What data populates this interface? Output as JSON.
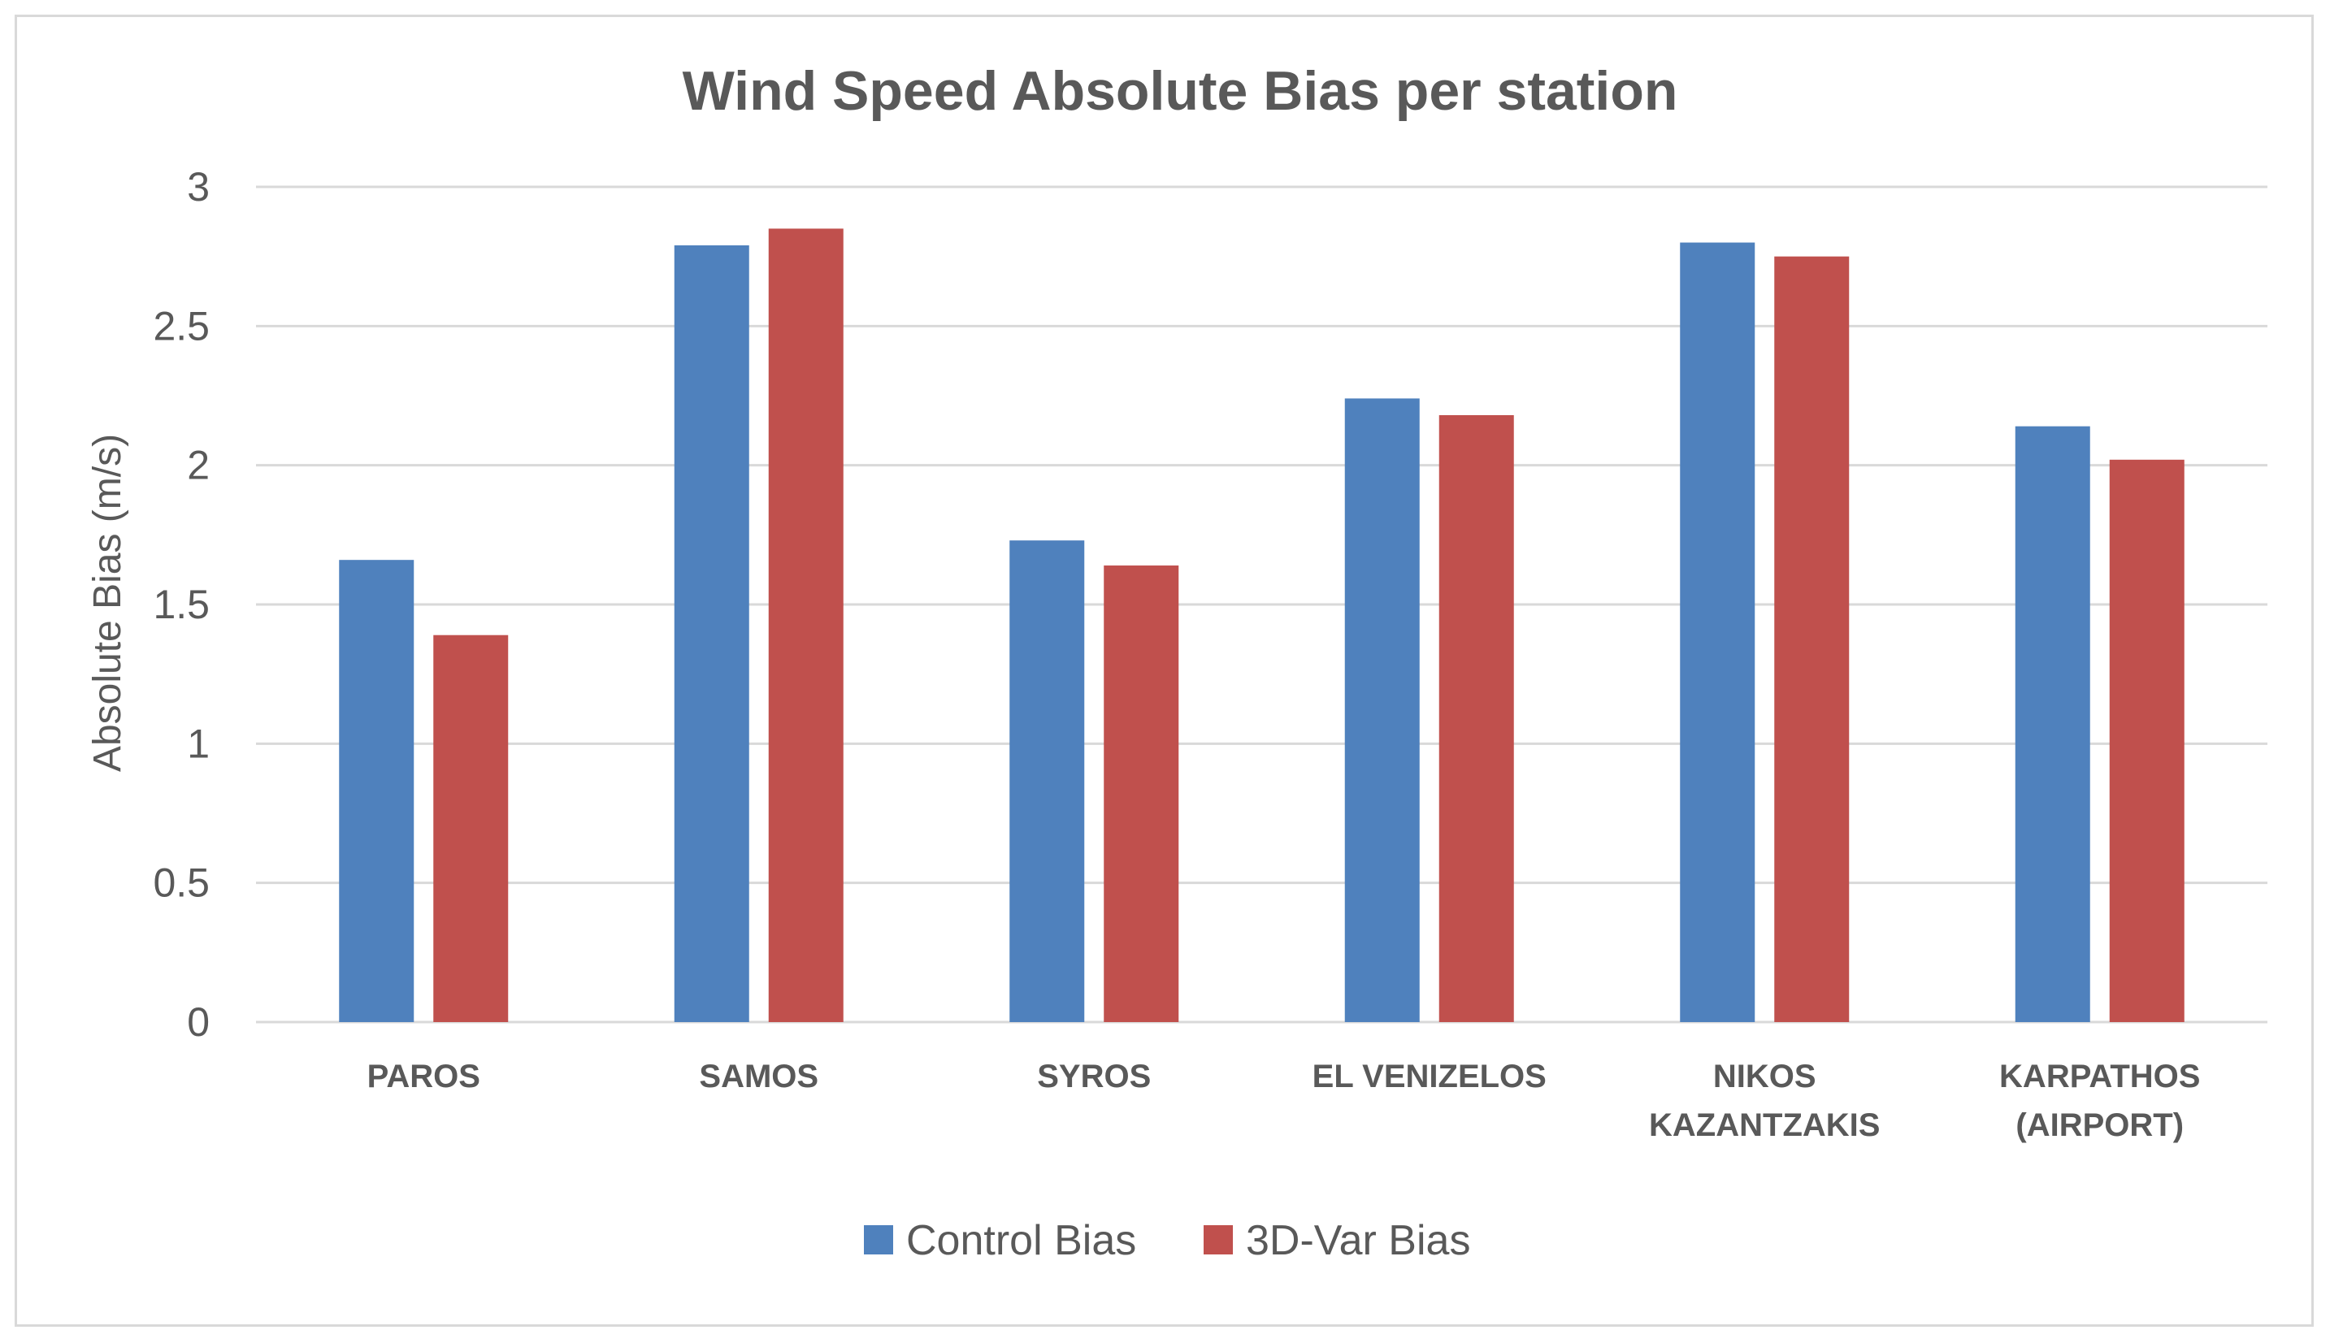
{
  "chart_data": {
    "type": "bar",
    "title": "Wind Speed Absolute Bias per station",
    "xlabel": "",
    "ylabel": "Absolute Bias (m/s)",
    "ylim": [
      0,
      3
    ],
    "yticks": [
      "0",
      "0.5",
      "1",
      "1.5",
      "2",
      "2.5",
      "3"
    ],
    "grid": true,
    "legend_position": "bottom",
    "categories": [
      [
        "PAROS"
      ],
      [
        "SAMOS"
      ],
      [
        "SYROS"
      ],
      [
        "EL VENIZELOS"
      ],
      [
        "NIKOS",
        "KAZANTZAKIS"
      ],
      [
        "KARPATHOS",
        "(AIRPORT)"
      ]
    ],
    "series": [
      {
        "name": "Control Bias",
        "color": "#4f81bd",
        "values": [
          1.66,
          2.79,
          1.73,
          2.24,
          2.8,
          2.14
        ]
      },
      {
        "name": "3D-Var Bias",
        "color": "#c0504d",
        "values": [
          1.39,
          2.85,
          1.64,
          2.18,
          2.75,
          2.02
        ]
      }
    ]
  }
}
